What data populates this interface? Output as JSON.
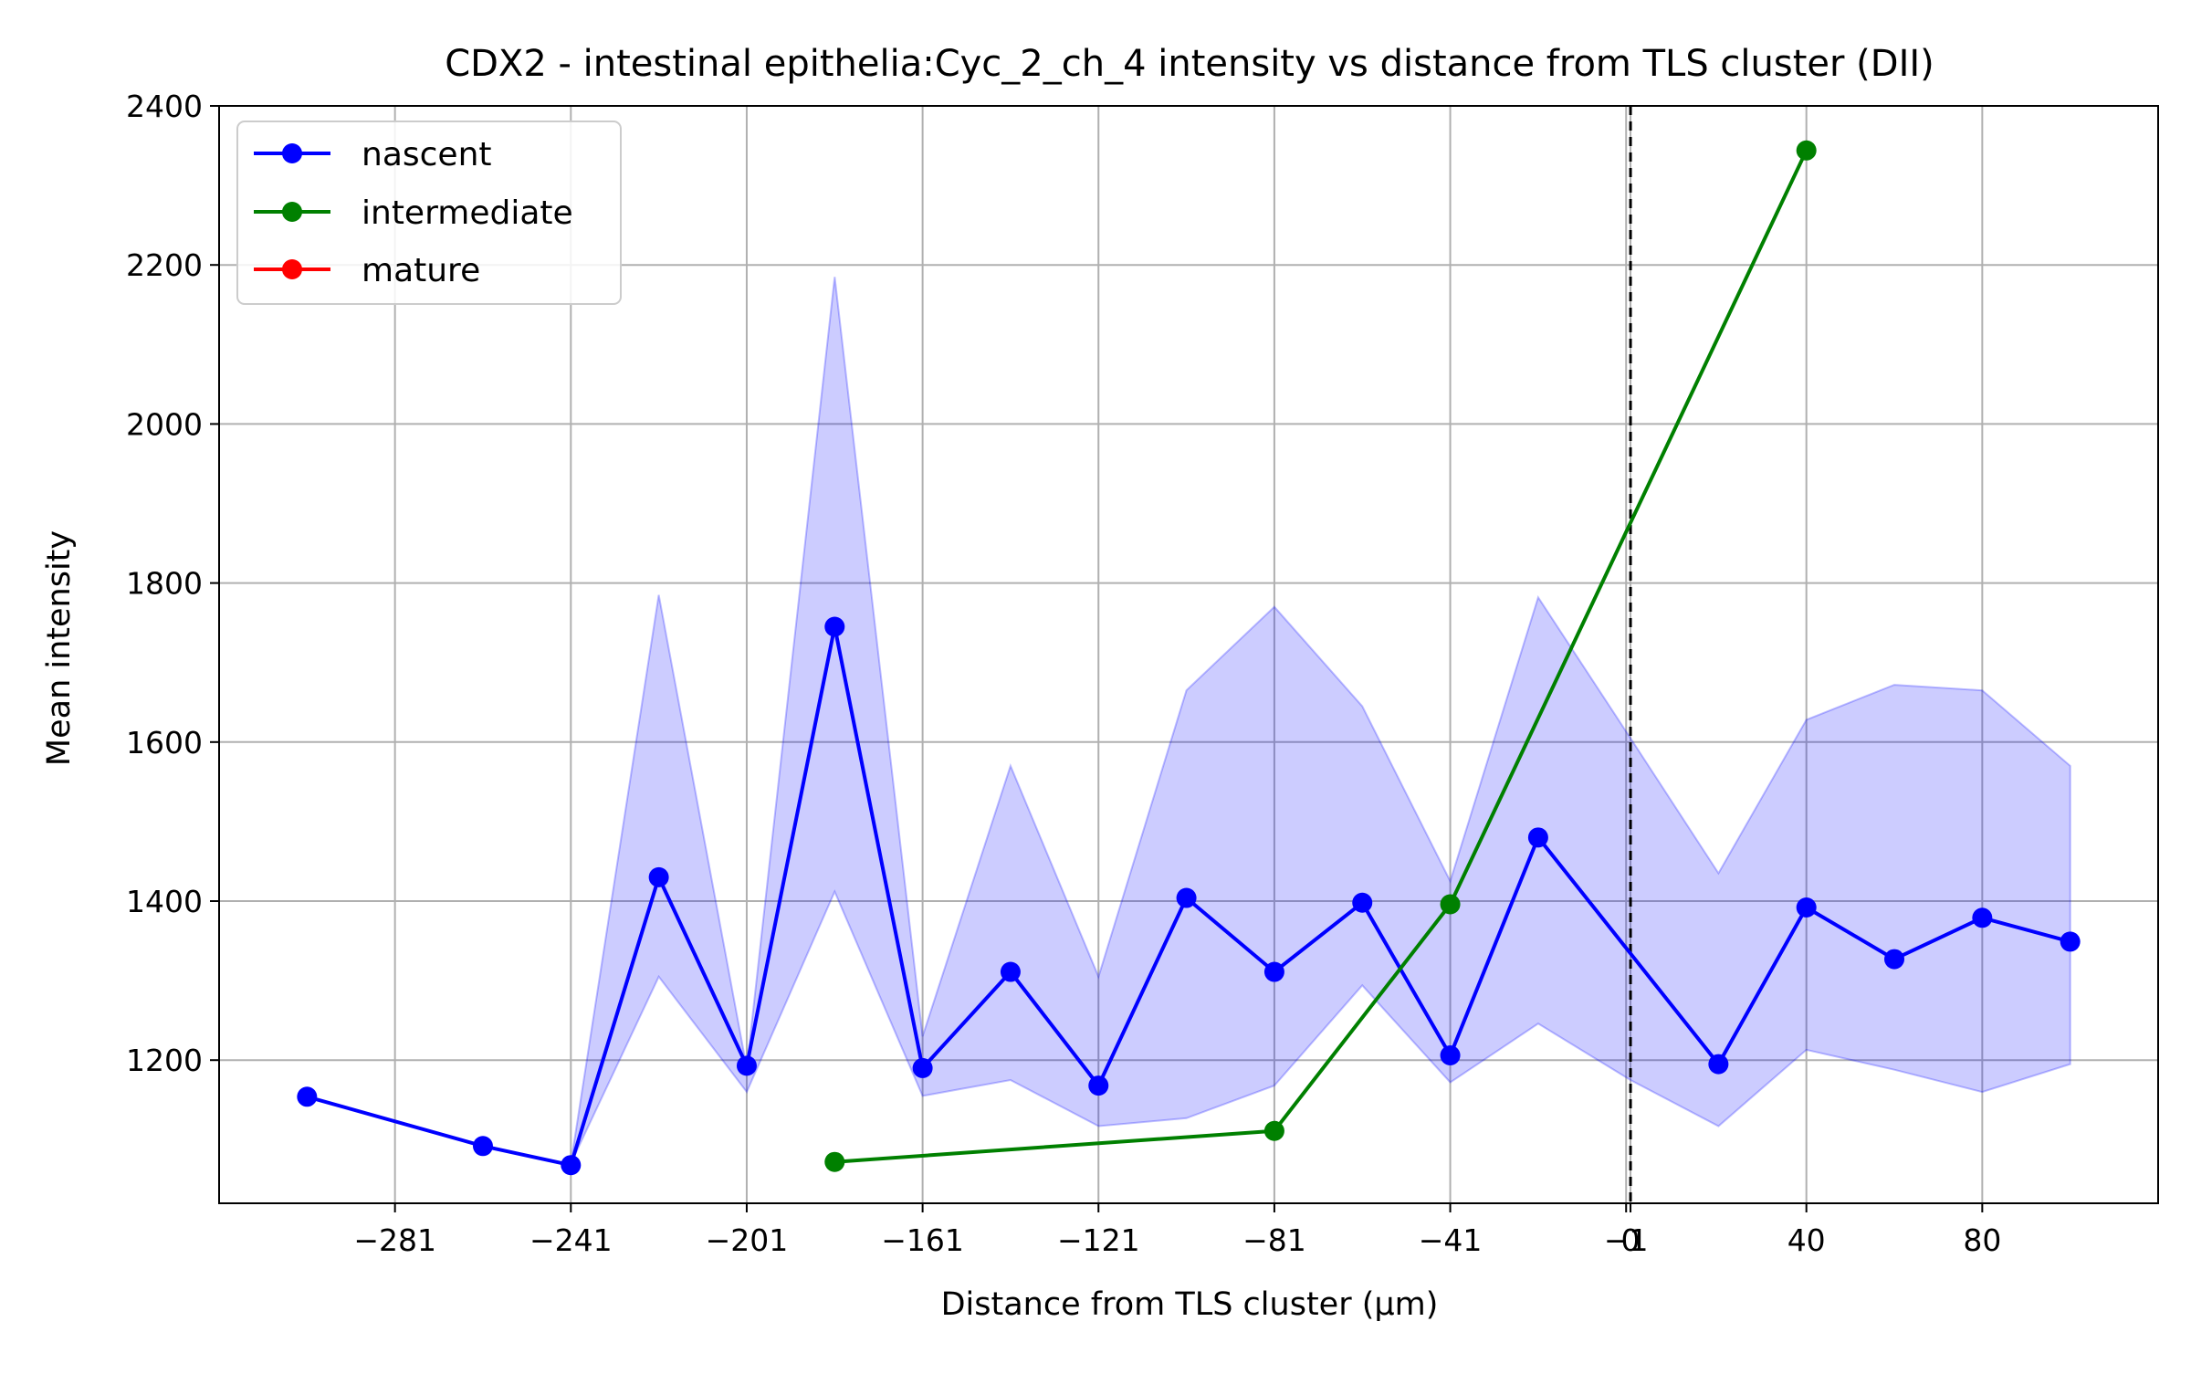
{
  "chart_data": {
    "type": "line",
    "title": "CDX2 - intestinal epithelia:Cyc_2_ch_4 intensity vs distance from TLS cluster (DII)",
    "xlabel": "Distance from TLS cluster (μm)",
    "ylabel": "Mean intensity",
    "xlim": [
      -321,
      120
    ],
    "ylim": [
      1020,
      2400
    ],
    "x_ticks": [
      {
        "value": -281,
        "label": "−281"
      },
      {
        "value": -241,
        "label": "−241"
      },
      {
        "value": -201,
        "label": "−201"
      },
      {
        "value": -161,
        "label": "−161"
      },
      {
        "value": -121,
        "label": "−121"
      },
      {
        "value": -81,
        "label": "−81"
      },
      {
        "value": -41,
        "label": "−41"
      },
      {
        "value": -1,
        "label": "−1"
      },
      {
        "value": 0,
        "label": "0"
      },
      {
        "value": 40,
        "label": "40"
      },
      {
        "value": 80,
        "label": "80"
      }
    ],
    "y_ticks": [
      {
        "value": 1200,
        "label": "1200"
      },
      {
        "value": 1400,
        "label": "1400"
      },
      {
        "value": 1600,
        "label": "1600"
      },
      {
        "value": 1800,
        "label": "1800"
      },
      {
        "value": 2000,
        "label": "2000"
      },
      {
        "value": 2200,
        "label": "2200"
      },
      {
        "value": 2400,
        "label": "2400"
      }
    ],
    "grid": true,
    "legend_position": "top-left",
    "reference_line": {
      "x": 0,
      "style": "dashed",
      "color": "#000000"
    },
    "series": [
      {
        "name": "nascent",
        "color": "#0000ff",
        "x": [
          -301,
          -261,
          -241,
          -221,
          -201,
          -181,
          -161,
          -141,
          -121,
          -101,
          -81,
          -61,
          -41,
          -21,
          20,
          40,
          60,
          80,
          100
        ],
        "y": [
          1154,
          1092,
          1068,
          1430,
          1193,
          1745,
          1190,
          1311,
          1168,
          1404,
          1311,
          1398,
          1206,
          1480,
          1195,
          1392,
          1327,
          1379,
          1349
        ],
        "band": {
          "color": "#0000ff",
          "opacity": 0.2,
          "x": [
            -241,
            -221,
            -201,
            -181,
            -161,
            -141,
            -121,
            -101,
            -81,
            -61,
            -41,
            -21,
            0,
            20,
            40,
            60,
            80,
            100
          ],
          "upper": [
            1070,
            1785,
            1190,
            2185,
            1230,
            1570,
            1305,
            1665,
            1770,
            1645,
            1425,
            1782,
            1605,
            1435,
            1628,
            1672,
            1665,
            1570
          ],
          "lower": [
            1070,
            1305,
            1160,
            1412,
            1155,
            1175,
            1117,
            1127,
            1168,
            1294,
            1172,
            1246,
            1175,
            1117,
            1213,
            1188,
            1160,
            1195
          ]
        }
      },
      {
        "name": "intermediate",
        "color": "#008000",
        "x": [
          -181,
          -81,
          -41,
          40
        ],
        "y": [
          1072,
          1111,
          1396,
          2344
        ]
      },
      {
        "name": "mature",
        "color": "#ff0000",
        "x": [],
        "y": []
      }
    ]
  }
}
